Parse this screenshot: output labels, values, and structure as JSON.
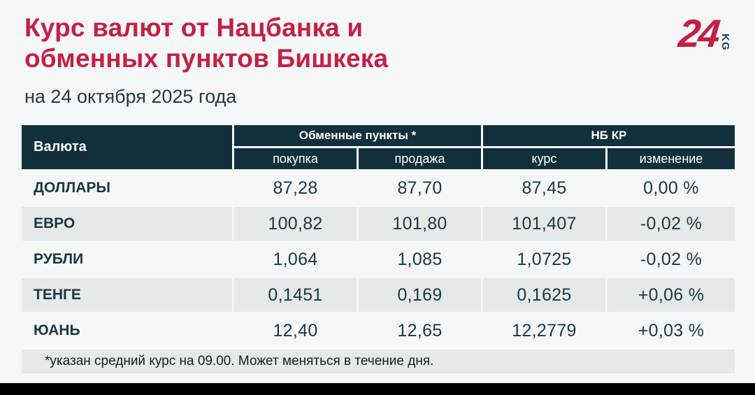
{
  "page": {
    "title_line1": "Курс валют от Нацбанка и",
    "title_line2": "обменных пунктов Бишкека",
    "subtitle": "на 24 октября 2025 года",
    "footnote": "*указан средний курс на 09.00. Может меняться в течение дня."
  },
  "logo": {
    "number": "24",
    "suffix": "KG"
  },
  "colors": {
    "accent_red": "#c51f45",
    "header_teal": "#12303b",
    "text_dark": "#1b3743",
    "row_alt_bg": "#e5e9ea",
    "page_bg": "#f5f7f9",
    "bottom_bar": "#000000"
  },
  "table": {
    "col_currency": "Валюта",
    "group_exchange": "Обменные пункты *",
    "group_nbkr": "НБ КР",
    "sub_buy": "покупка",
    "sub_sell": "продажа",
    "sub_rate": "курс",
    "sub_change": "изменение",
    "rows": [
      {
        "name": "ДОЛЛАРЫ",
        "buy": "87,28",
        "sell": "87,70",
        "rate": "87,45",
        "change": "0,00 %"
      },
      {
        "name": "ЕВРО",
        "buy": "100,82",
        "sell": "101,80",
        "rate": "101,407",
        "change": "-0,02 %"
      },
      {
        "name": "РУБЛИ",
        "buy": "1,064",
        "sell": "1,085",
        "rate": "1,0725",
        "change": "-0,02 %"
      },
      {
        "name": "ТЕНГЕ",
        "buy": "0,1451",
        "sell": "0,169",
        "rate": "0,1625",
        "change": "+0,06 %"
      },
      {
        "name": "ЮАНЬ",
        "buy": "12,40",
        "sell": "12,65",
        "rate": "12,2779",
        "change": "+0,03 %"
      }
    ]
  },
  "chart_data": {
    "type": "table",
    "title": "Курс валют от Нацбанка и обменных пунктов Бишкека",
    "subtitle": "на 24 октября 2025 года",
    "column_groups": [
      {
        "label": "Валюта",
        "span": 1
      },
      {
        "label": "Обменные пункты *",
        "span": 2
      },
      {
        "label": "НБ КР",
        "span": 2
      }
    ],
    "columns": [
      "Валюта",
      "покупка",
      "продажа",
      "курс",
      "изменение"
    ],
    "rows": [
      [
        "ДОЛЛАРЫ",
        "87,28",
        "87,70",
        "87,45",
        "0,00 %"
      ],
      [
        "ЕВРО",
        "100,82",
        "101,80",
        "101,407",
        "-0,02 %"
      ],
      [
        "РУБЛИ",
        "1,064",
        "1,085",
        "1,0725",
        "-0,02 %"
      ],
      [
        "ТЕНГЕ",
        "0,1451",
        "0,169",
        "0,1625",
        "+0,06 %"
      ],
      [
        "ЮАНЬ",
        "12,40",
        "12,65",
        "12,2779",
        "+0,03 %"
      ]
    ],
    "footnote": "*указан средний курс на 09.00. Может меняться в течение дня.",
    "source_logo": "24.KG"
  }
}
